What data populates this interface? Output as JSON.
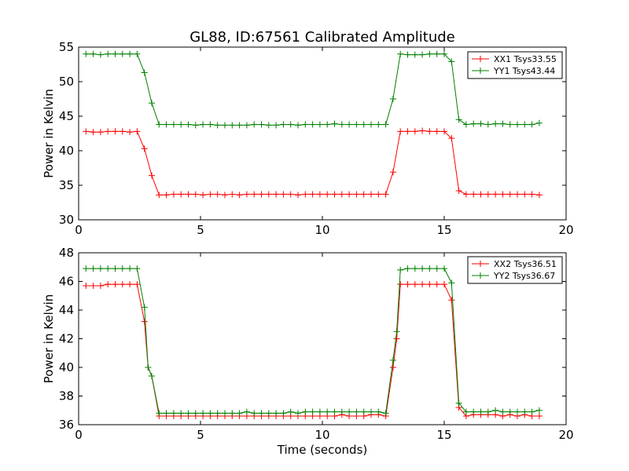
{
  "chart_data": [
    {
      "type": "line",
      "title": "GL88, ID:67561 Calibrated Amplitude",
      "xlabel": "",
      "ylabel": "Power in Kelvin",
      "xlim": [
        0,
        20
      ],
      "ylim": [
        30,
        55
      ],
      "xticks": [
        "0",
        "5",
        "10",
        "15",
        "20"
      ],
      "yticks": [
        "30",
        "35",
        "40",
        "45",
        "50",
        "55"
      ],
      "grid": false,
      "legend_position": "top-right",
      "x": [
        0.3,
        0.6,
        0.9,
        1.2,
        1.5,
        1.8,
        2.1,
        2.4,
        2.7,
        3.0,
        3.3,
        3.6,
        3.9,
        4.2,
        4.5,
        4.8,
        5.1,
        5.4,
        5.7,
        6.0,
        6.3,
        6.6,
        6.9,
        7.2,
        7.5,
        7.8,
        8.1,
        8.4,
        8.7,
        9.0,
        9.3,
        9.6,
        9.9,
        10.2,
        10.5,
        10.8,
        11.1,
        11.4,
        11.7,
        12.0,
        12.3,
        12.6,
        12.9,
        13.2,
        13.5,
        13.8,
        14.1,
        14.4,
        14.7,
        15.0,
        15.3,
        15.6,
        15.9,
        16.2,
        16.5,
        16.8,
        17.1,
        17.4,
        17.7,
        18.0,
        18.3,
        18.6,
        18.9
      ],
      "series": [
        {
          "name": "XX1 Tsys33.55",
          "color": "#ff0000",
          "values": [
            42.8,
            42.7,
            42.7,
            42.8,
            42.8,
            42.8,
            42.7,
            42.8,
            40.3,
            36.4,
            33.6,
            33.6,
            33.7,
            33.7,
            33.7,
            33.7,
            33.6,
            33.7,
            33.7,
            33.6,
            33.7,
            33.6,
            33.7,
            33.7,
            33.7,
            33.7,
            33.7,
            33.7,
            33.7,
            33.6,
            33.7,
            33.7,
            33.7,
            33.7,
            33.7,
            33.7,
            33.7,
            33.7,
            33.7,
            33.7,
            33.7,
            33.7,
            36.9,
            42.8,
            42.8,
            42.8,
            42.9,
            42.8,
            42.8,
            42.8,
            41.8,
            34.2,
            33.7,
            33.7,
            33.7,
            33.7,
            33.7,
            33.7,
            33.7,
            33.7,
            33.7,
            33.7,
            33.6
          ]
        },
        {
          "name": "YY1 Tsys43.44",
          "color": "#008000",
          "values": [
            54.0,
            54.0,
            53.9,
            54.0,
            54.0,
            54.0,
            54.0,
            54.0,
            51.3,
            46.9,
            43.8,
            43.8,
            43.8,
            43.8,
            43.8,
            43.7,
            43.8,
            43.8,
            43.7,
            43.7,
            43.7,
            43.7,
            43.7,
            43.8,
            43.8,
            43.7,
            43.7,
            43.8,
            43.8,
            43.7,
            43.8,
            43.8,
            43.8,
            43.8,
            43.9,
            43.8,
            43.8,
            43.8,
            43.8,
            43.8,
            43.8,
            43.8,
            47.5,
            54.0,
            53.9,
            53.9,
            53.9,
            54.0,
            54.0,
            54.0,
            52.9,
            44.5,
            43.8,
            43.9,
            43.9,
            43.8,
            43.9,
            43.9,
            43.8,
            43.8,
            43.8,
            43.8,
            44.0
          ]
        }
      ]
    },
    {
      "type": "line",
      "title": "",
      "xlabel": "Time (seconds)",
      "ylabel": "Power in Kelvin",
      "xlim": [
        0,
        20
      ],
      "ylim": [
        36,
        48
      ],
      "xticks": [
        "0",
        "5",
        "10",
        "15",
        "20"
      ],
      "yticks": [
        "36",
        "38",
        "40",
        "42",
        "44",
        "46",
        "48"
      ],
      "grid": false,
      "legend_position": "top-right",
      "x": [
        0.3,
        0.6,
        0.9,
        1.2,
        1.5,
        1.8,
        2.1,
        2.4,
        2.7,
        2.85,
        3.0,
        3.3,
        3.6,
        3.9,
        4.2,
        4.5,
        4.8,
        5.1,
        5.4,
        5.7,
        6.0,
        6.3,
        6.6,
        6.9,
        7.2,
        7.5,
        7.8,
        8.1,
        8.4,
        8.7,
        9.0,
        9.3,
        9.6,
        9.9,
        10.2,
        10.5,
        10.8,
        11.1,
        11.4,
        11.7,
        12.0,
        12.3,
        12.6,
        12.9,
        13.05,
        13.2,
        13.5,
        13.8,
        14.1,
        14.4,
        14.7,
        15.0,
        15.3,
        15.6,
        15.9,
        16.2,
        16.5,
        16.8,
        17.1,
        17.4,
        17.7,
        18.0,
        18.3,
        18.6,
        18.9
      ],
      "series": [
        {
          "name": "XX2 Tsys36.51",
          "color": "#ff0000",
          "values": [
            45.7,
            45.7,
            45.7,
            45.8,
            45.8,
            45.8,
            45.8,
            45.8,
            43.2,
            40.0,
            39.4,
            36.6,
            36.6,
            36.6,
            36.6,
            36.6,
            36.6,
            36.6,
            36.6,
            36.6,
            36.6,
            36.6,
            36.6,
            36.6,
            36.6,
            36.6,
            36.6,
            36.6,
            36.6,
            36.6,
            36.6,
            36.6,
            36.6,
            36.6,
            36.6,
            36.6,
            36.7,
            36.6,
            36.6,
            36.6,
            36.7,
            36.7,
            36.6,
            40.0,
            42.0,
            45.8,
            45.8,
            45.8,
            45.8,
            45.8,
            45.8,
            45.8,
            44.7,
            37.2,
            36.6,
            36.7,
            36.7,
            36.7,
            36.7,
            36.6,
            36.7,
            36.6,
            36.7,
            36.6,
            36.6
          ]
        },
        {
          "name": "YY2 Tsys36.67",
          "color": "#008000",
          "values": [
            46.9,
            46.9,
            46.9,
            46.9,
            46.9,
            46.9,
            46.9,
            46.9,
            44.2,
            40.0,
            39.4,
            36.8,
            36.8,
            36.8,
            36.8,
            36.8,
            36.8,
            36.8,
            36.8,
            36.8,
            36.8,
            36.8,
            36.8,
            36.9,
            36.8,
            36.8,
            36.8,
            36.8,
            36.8,
            36.9,
            36.8,
            36.9,
            36.9,
            36.9,
            36.9,
            36.9,
            36.9,
            36.9,
            36.9,
            36.9,
            36.9,
            36.9,
            36.8,
            40.5,
            42.5,
            46.8,
            46.9,
            46.9,
            46.9,
            46.9,
            46.9,
            46.9,
            45.9,
            37.5,
            36.9,
            36.9,
            36.9,
            36.9,
            37.0,
            36.9,
            36.9,
            36.9,
            36.9,
            36.9,
            37.0
          ]
        }
      ]
    }
  ]
}
